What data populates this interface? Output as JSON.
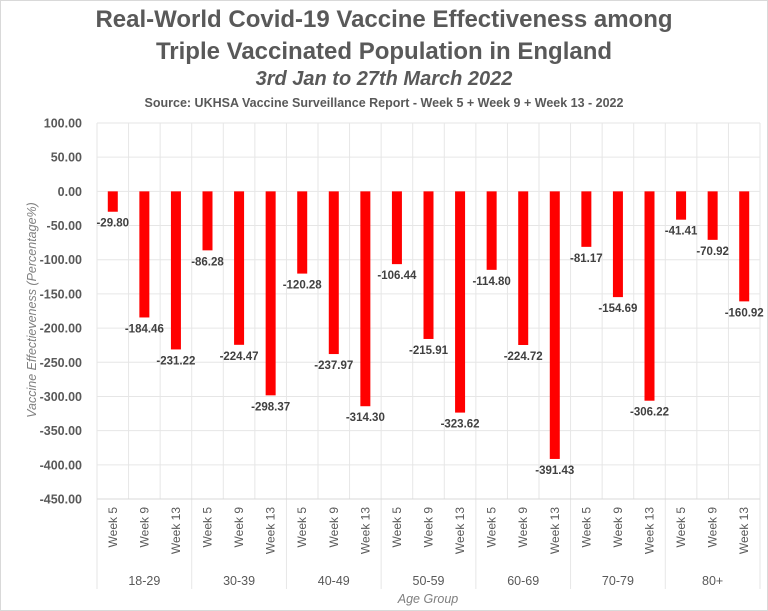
{
  "chart_data": {
    "type": "bar",
    "title": "Real-World Covid-19 Vaccine Effectiveness among",
    "title_line2": "Triple Vaccinated Population in England",
    "subtitle": "3rd Jan to 27th March 2022",
    "source": "Source: UKHSA Vaccine Surveillance Report - Week 5 + Week 9 + Week 13 - 2022",
    "xlabel": "Age Group",
    "ylabel": "Vaccine Effectieveness (Percentage%)",
    "ylim": [
      -450,
      100
    ],
    "yticks": [
      100,
      50,
      0,
      -50,
      -100,
      -150,
      -200,
      -250,
      -300,
      -350,
      -400,
      -450
    ],
    "ytick_labels": [
      "100.00",
      "50.00",
      "0.00",
      "-50.00",
      "-100.00",
      "-150.00",
      "-200.00",
      "-250.00",
      "-300.00",
      "-350.00",
      "-400.00",
      "-450.00"
    ],
    "grid": true,
    "bar_color": "#ff0000",
    "groups": [
      "18-29",
      "30-39",
      "40-49",
      "50-59",
      "60-69",
      "70-79",
      "80+"
    ],
    "subcategories": [
      "Week 5",
      "Week 9",
      "Week 13"
    ],
    "values": [
      [
        -29.8,
        -184.46,
        -231.22
      ],
      [
        -86.28,
        -224.47,
        -298.37
      ],
      [
        -120.28,
        -237.97,
        -314.3
      ],
      [
        -106.44,
        -215.91,
        -323.62
      ],
      [
        -114.8,
        -224.72,
        -391.43
      ],
      [
        -81.17,
        -154.69,
        -306.22
      ],
      [
        -41.41,
        -70.92,
        -160.92
      ]
    ],
    "data_labels": [
      [
        "-29.80",
        "-184.46",
        "-231.22"
      ],
      [
        "-86.28",
        "-224.47",
        "-298.37"
      ],
      [
        "-120.28",
        "-237.97",
        "-314.30"
      ],
      [
        "-106.44",
        "-215.91",
        "-323.62"
      ],
      [
        "-114.80",
        "-224.72",
        "-391.43"
      ],
      [
        "-81.17",
        "-154.69",
        "-306.22"
      ],
      [
        "-41.41",
        "-70.92",
        "-160.92"
      ]
    ]
  }
}
